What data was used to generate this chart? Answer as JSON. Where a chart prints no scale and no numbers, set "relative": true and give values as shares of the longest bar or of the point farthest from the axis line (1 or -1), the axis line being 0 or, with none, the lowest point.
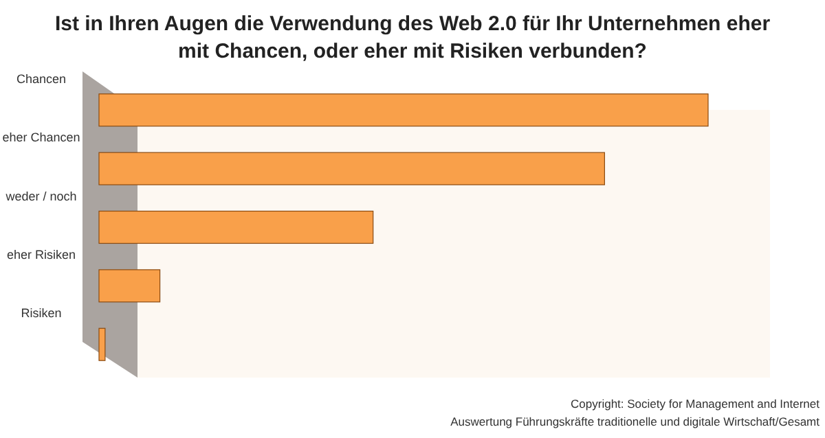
{
  "chart_data": {
    "type": "bar",
    "orientation": "horizontal",
    "relative": true,
    "title": "Ist in Ihren Augen die Verwendung des Web 2.0 für Ihr Unternehmen eher mit Chancen, oder eher mit Risiken verbunden?",
    "categories": [
      "Chancen",
      "eher Chancen",
      "weder / noch",
      "eher Risiken",
      "Risiken"
    ],
    "values": [
      1,
      0.83,
      0.45,
      0.1,
      0.01
    ],
    "color": "#f9a04a",
    "annotations": [
      "Copyright: Society for Management and Internet",
      "Auswertung Führungskräfte traditionelle und digitale Wirtschaft/Gesamt"
    ]
  }
}
